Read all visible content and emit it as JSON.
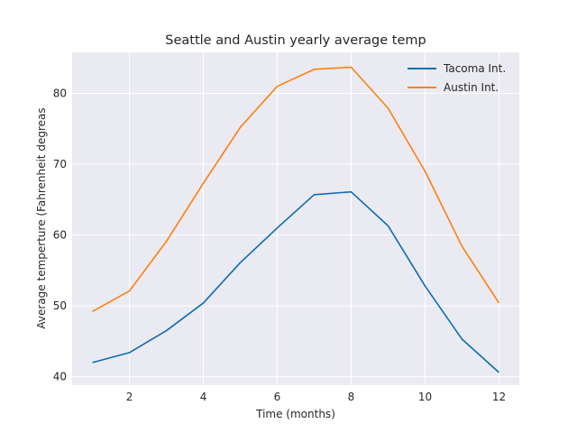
{
  "chart_data": {
    "type": "line",
    "title": "Seattle and Austin yearly average temp",
    "xlabel": "Time (months)",
    "ylabel": "Average temperture (Fahrenheit degreas",
    "x": [
      1,
      2,
      3,
      4,
      5,
      6,
      7,
      8,
      9,
      10,
      11,
      12
    ],
    "xlim": [
      0.45,
      12.55
    ],
    "ylim": [
      38.8,
      85.8
    ],
    "xticks": [
      2,
      4,
      6,
      8,
      10,
      12
    ],
    "yticks": [
      40,
      50,
      60,
      70,
      80
    ],
    "grid": true,
    "legend_position": "top-right",
    "background_color": "#eaeaf2",
    "grid_color": "#ffffff",
    "series": [
      {
        "name": "Tacoma Int.",
        "color": "#0a6eb0",
        "values": [
          42.0,
          43.4,
          46.5,
          50.4,
          56.1,
          61.0,
          65.7,
          66.1,
          61.3,
          52.8,
          45.3,
          40.6
        ]
      },
      {
        "name": "Austin Int.",
        "color": "#ff7f0e",
        "values": [
          49.2,
          52.1,
          59.1,
          67.3,
          75.2,
          81.0,
          83.4,
          83.7,
          77.9,
          69.0,
          58.4,
          50.4
        ]
      }
    ]
  }
}
